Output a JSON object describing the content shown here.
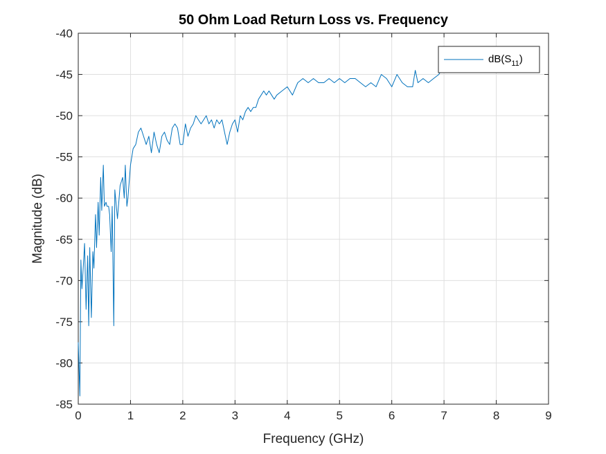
{
  "chart_data": {
    "type": "line",
    "title": "50 Ohm Load Return Loss vs. Frequency",
    "xlabel": "Frequency (GHz)",
    "ylabel": "Magnitude (dB)",
    "xlim": [
      0,
      9
    ],
    "ylim": [
      -85,
      -40
    ],
    "xticks": [
      0,
      1,
      2,
      3,
      4,
      5,
      6,
      7,
      8,
      9
    ],
    "yticks": [
      -40,
      -45,
      -50,
      -55,
      -60,
      -65,
      -70,
      -75,
      -80,
      -85
    ],
    "grid": true,
    "legend": {
      "placement": "top-right"
    },
    "series": [
      {
        "name": "dB(S11)",
        "color": "#0072BD",
        "x": [
          0.0,
          0.03,
          0.05,
          0.07,
          0.1,
          0.12,
          0.15,
          0.18,
          0.2,
          0.22,
          0.25,
          0.28,
          0.3,
          0.33,
          0.35,
          0.38,
          0.4,
          0.43,
          0.45,
          0.48,
          0.5,
          0.53,
          0.55,
          0.58,
          0.6,
          0.63,
          0.65,
          0.68,
          0.7,
          0.75,
          0.8,
          0.85,
          0.88,
          0.9,
          0.93,
          0.95,
          1.0,
          1.05,
          1.1,
          1.15,
          1.2,
          1.25,
          1.3,
          1.35,
          1.4,
          1.45,
          1.5,
          1.55,
          1.6,
          1.65,
          1.7,
          1.75,
          1.8,
          1.85,
          1.9,
          1.95,
          2.0,
          2.05,
          2.1,
          2.15,
          2.2,
          2.25,
          2.3,
          2.35,
          2.4,
          2.45,
          2.5,
          2.55,
          2.6,
          2.65,
          2.7,
          2.75,
          2.8,
          2.85,
          2.9,
          2.95,
          3.0,
          3.05,
          3.1,
          3.15,
          3.2,
          3.25,
          3.3,
          3.35,
          3.4,
          3.45,
          3.5,
          3.55,
          3.6,
          3.65,
          3.7,
          3.75,
          3.8,
          3.9,
          4.0,
          4.1,
          4.2,
          4.3,
          4.4,
          4.5,
          4.6,
          4.7,
          4.8,
          4.9,
          5.0,
          5.1,
          5.2,
          5.3,
          5.4,
          5.5,
          5.6,
          5.7,
          5.8,
          5.9,
          6.0,
          6.1,
          6.2,
          6.3,
          6.4,
          6.45,
          6.5,
          6.6,
          6.7,
          6.8,
          6.9,
          6.95
        ],
        "y": [
          -77.5,
          -84.0,
          -67.5,
          -71.0,
          -68.0,
          -65.5,
          -73.5,
          -67.0,
          -75.5,
          -66.0,
          -74.5,
          -66.5,
          -68.5,
          -62.0,
          -66.0,
          -60.5,
          -64.5,
          -57.5,
          -61.5,
          -56.0,
          -61.0,
          -60.5,
          -61.0,
          -61.0,
          -62.0,
          -66.5,
          -61.0,
          -75.5,
          -59.0,
          -62.5,
          -58.5,
          -57.5,
          -60.0,
          -56.0,
          -61.0,
          -60.0,
          -56.0,
          -54.0,
          -53.5,
          -52.0,
          -51.5,
          -52.5,
          -53.5,
          -52.5,
          -54.5,
          -52.0,
          -53.5,
          -54.5,
          -52.5,
          -52.0,
          -53.0,
          -53.5,
          -51.5,
          -51.0,
          -51.5,
          -53.5,
          -53.5,
          -51.0,
          -52.5,
          -51.5,
          -51.0,
          -50.0,
          -50.5,
          -51.0,
          -50.5,
          -50.0,
          -51.0,
          -50.5,
          -51.5,
          -50.5,
          -51.0,
          -50.5,
          -52.0,
          -53.5,
          -52.0,
          -51.0,
          -50.5,
          -52.0,
          -50.0,
          -50.5,
          -49.5,
          -49.0,
          -49.5,
          -49.0,
          -49.0,
          -48.0,
          -47.5,
          -47.0,
          -47.5,
          -47.0,
          -47.5,
          -48.0,
          -47.5,
          -47.0,
          -46.5,
          -47.5,
          -46.0,
          -45.5,
          -46.0,
          -45.5,
          -46.0,
          -46.0,
          -45.5,
          -46.0,
          -45.5,
          -46.0,
          -45.5,
          -45.5,
          -46.0,
          -46.5,
          -46.0,
          -46.5,
          -45.0,
          -45.5,
          -46.5,
          -45.0,
          -46.0,
          -46.5,
          -46.5,
          -44.5,
          -46.0,
          -45.5,
          -46.0,
          -45.5,
          -45.0,
          -44.5
        ],
        "label_parts": {
          "base": "dB(S",
          "sub": "11",
          "close": ")"
        }
      }
    ]
  }
}
